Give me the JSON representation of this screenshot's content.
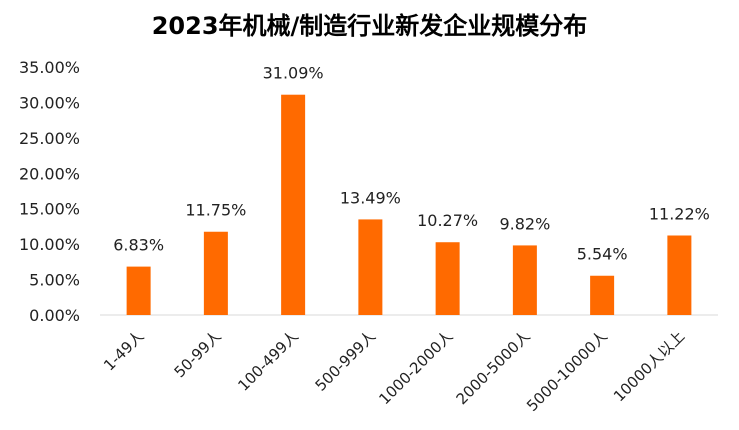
{
  "chart_data": {
    "type": "bar",
    "title": "2023年机械/制造行业新发企业规模分布",
    "categories": [
      "1-49人",
      "50-99人",
      "100-499人",
      "500-999人",
      "1000-2000人",
      "2000-5000人",
      "5000-10000人",
      "10000人以上"
    ],
    "values": [
      6.83,
      11.75,
      31.09,
      13.49,
      10.27,
      9.82,
      5.54,
      11.22
    ],
    "data_labels": [
      "6.83%",
      "11.75%",
      "31.09%",
      "13.49%",
      "10.27%",
      "9.82%",
      "5.54%",
      "11.22%"
    ],
    "y_ticks": [
      "0.00%",
      "5.00%",
      "10.00%",
      "15.00%",
      "20.00%",
      "25.00%",
      "30.00%",
      "35.00%"
    ],
    "ylim": [
      0,
      35
    ],
    "xlabel": "",
    "ylabel": "",
    "grid": false,
    "legend": "none",
    "bar_color": "#ff6a00"
  }
}
